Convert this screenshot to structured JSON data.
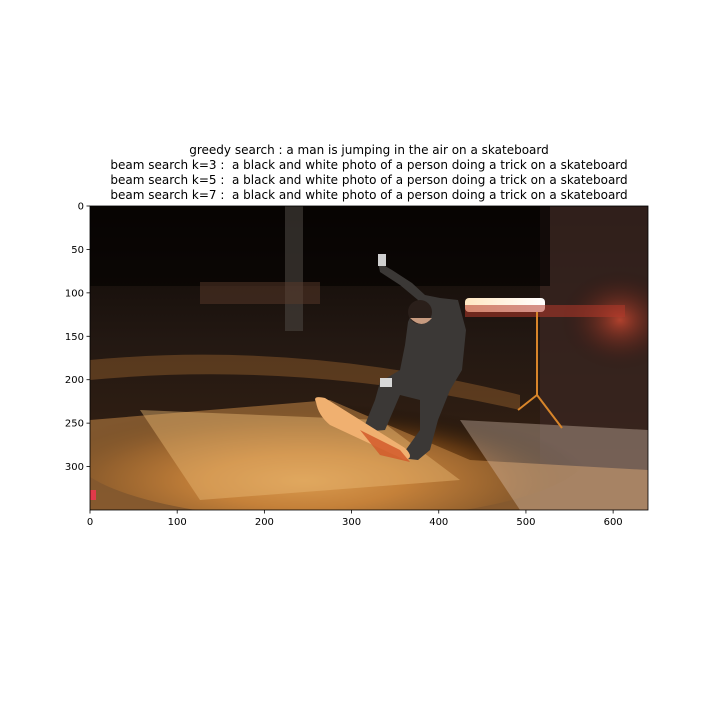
{
  "title_lines": [
    "greedy search : a man is jumping in the air on a skateboard",
    "beam search k=3 :  a black and white photo of a person doing a trick on a skateboard",
    "beam search k=5 :  a black and white photo of a person doing a trick on a skateboard",
    "beam search k=7 :  a black and white photo of a person doing a trick on a skateboard"
  ],
  "image_extent": {
    "width": 640,
    "height": 350
  },
  "x_ticks": [
    0,
    100,
    200,
    300,
    400,
    500,
    600
  ],
  "y_ticks": [
    0,
    50,
    100,
    150,
    200,
    250,
    300
  ],
  "photo_description_icon": "skateboarder-photo"
}
